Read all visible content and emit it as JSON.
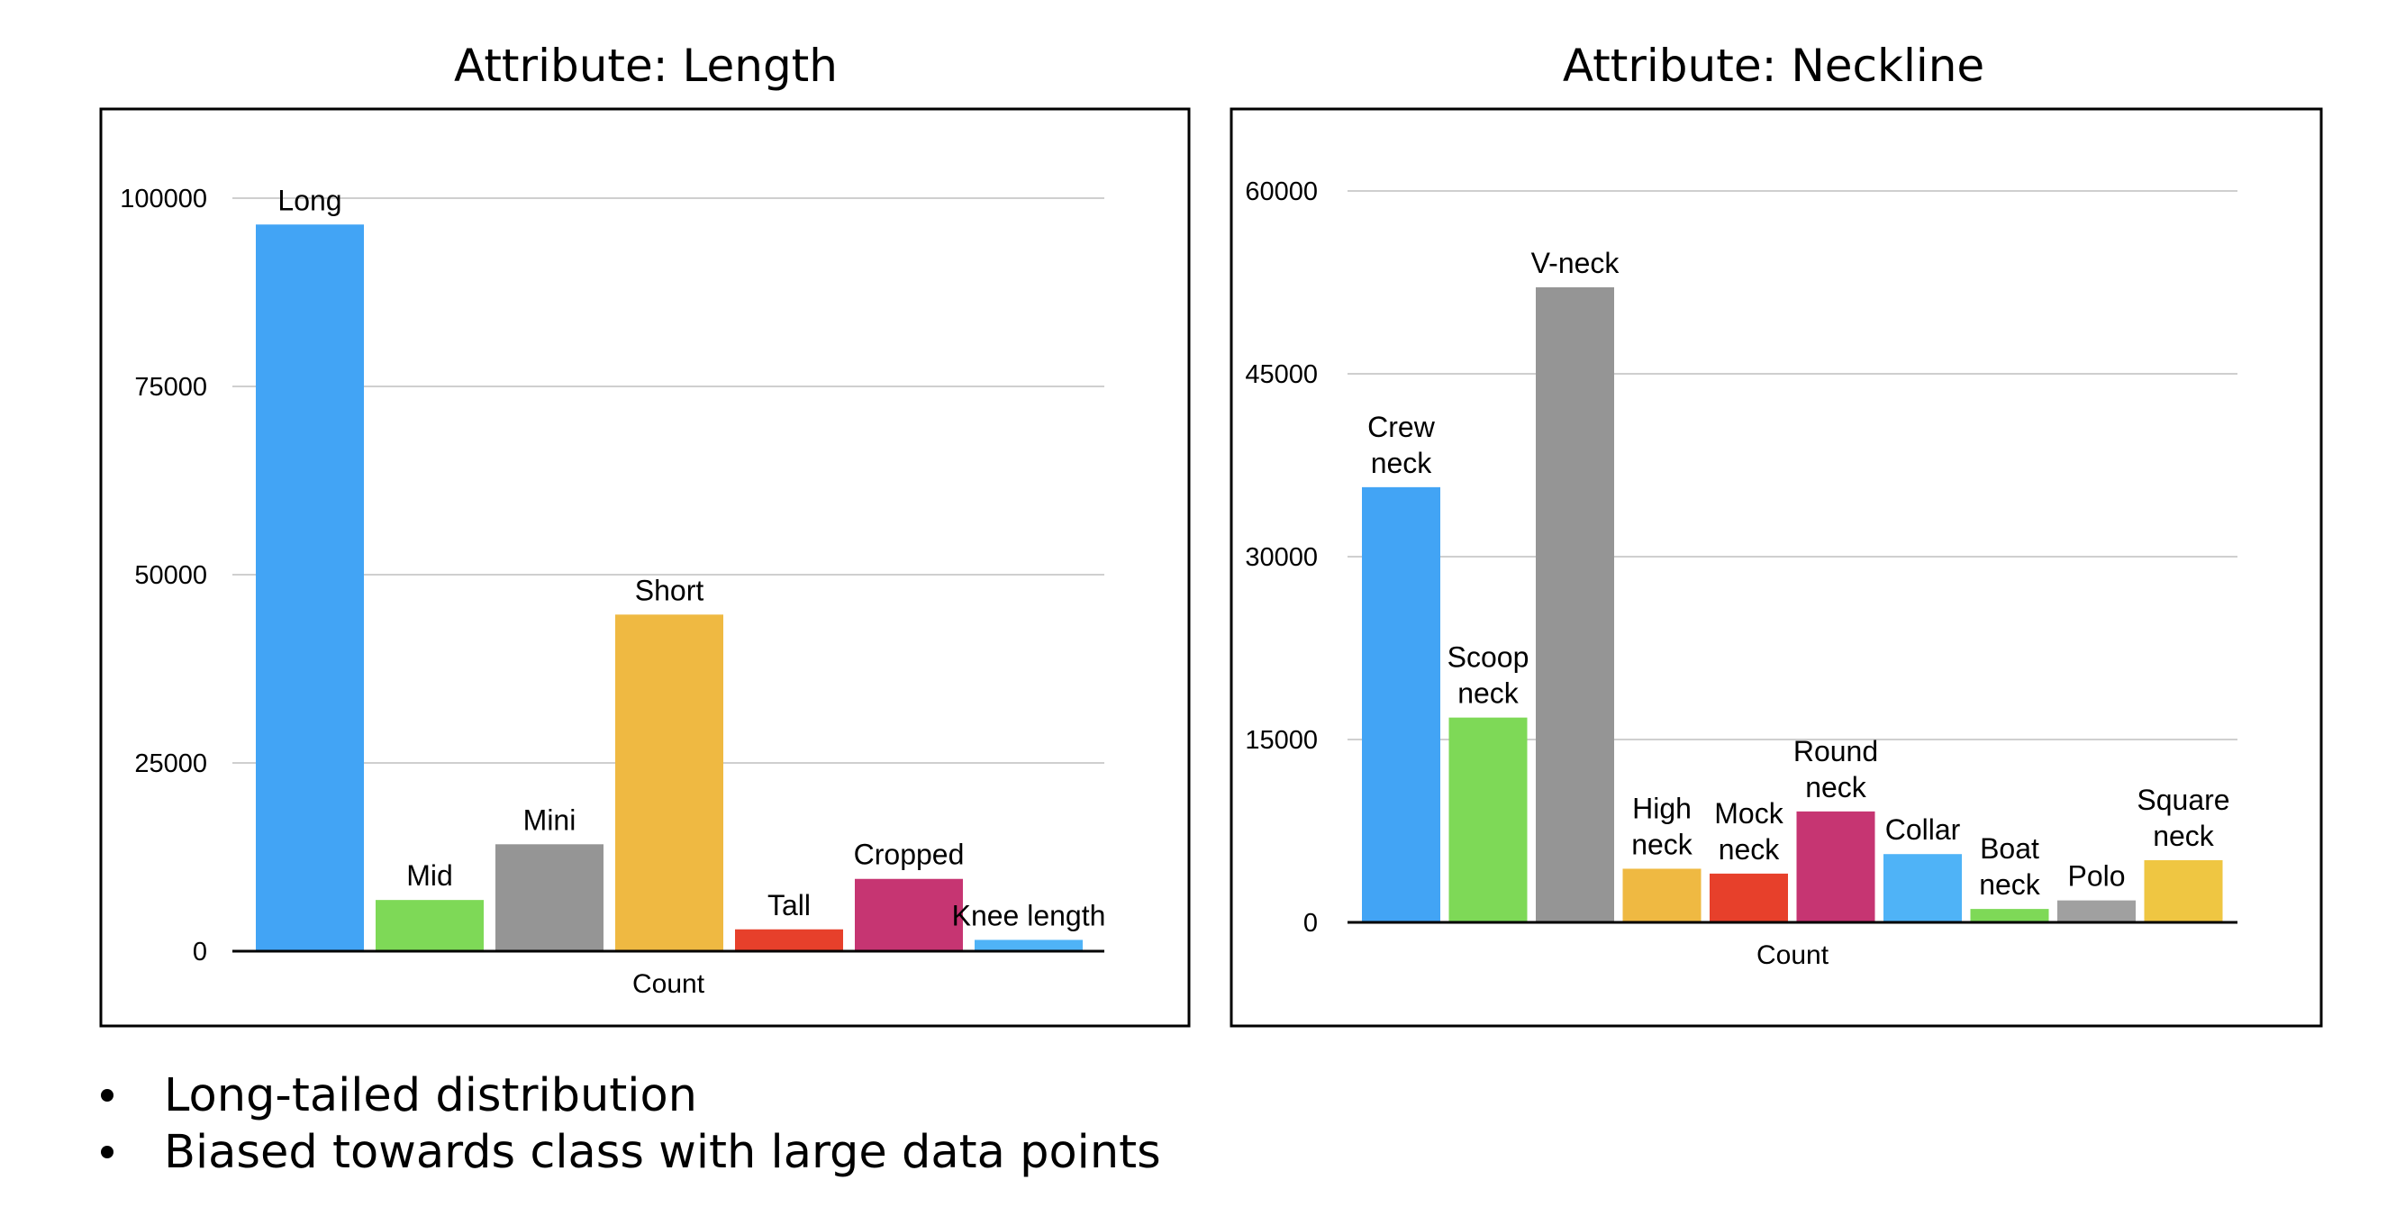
{
  "chart_data": [
    {
      "type": "bar",
      "title": "Attribute: Length",
      "xlabel": "Count",
      "ylim": [
        0,
        100000
      ],
      "yticks": [
        0,
        25000,
        50000,
        75000,
        100000
      ],
      "categories": [
        "Long",
        "Mid",
        "Mini",
        "Short",
        "Tall",
        "Cropped",
        "Knee length"
      ],
      "values": [
        96500,
        6800,
        14200,
        44700,
        2900,
        9600,
        1500
      ],
      "colors": [
        "#42a4f5",
        "#7ed957",
        "#959595",
        "#efb942",
        "#e7402b",
        "#c63572",
        "#4fb3f7"
      ]
    },
    {
      "type": "bar",
      "title": "Attribute: Neckline",
      "xlabel": "Count",
      "ylim": [
        0,
        60000
      ],
      "yticks": [
        0,
        15000,
        30000,
        45000,
        60000
      ],
      "categories": [
        "Crew neck",
        "Scoop neck",
        "V-neck",
        "High neck",
        "Mock neck",
        "Round neck",
        "Collar",
        "Boat neck",
        "Polo",
        "Square neck"
      ],
      "label_lines": [
        [
          "Crew",
          "neck"
        ],
        [
          "Scoop",
          "neck"
        ],
        [
          "V-neck"
        ],
        [
          "High",
          "neck"
        ],
        [
          "Mock",
          "neck"
        ],
        [
          "Round",
          "neck"
        ],
        [
          "Collar"
        ],
        [
          "Boat",
          "neck"
        ],
        [
          "Polo"
        ],
        [
          "Square",
          "neck"
        ]
      ],
      "values": [
        35700,
        16800,
        52100,
        4400,
        4000,
        9100,
        5600,
        1100,
        1800,
        5100
      ],
      "colors": [
        "#42a4f5",
        "#7ed957",
        "#959595",
        "#efb942",
        "#e7402b",
        "#c63572",
        "#4fb3f7",
        "#7ed957",
        "#a0a0a0",
        "#efc642"
      ]
    }
  ],
  "bullets": [
    "Long-tailed distribution",
    "Biased towards class with large data points"
  ]
}
